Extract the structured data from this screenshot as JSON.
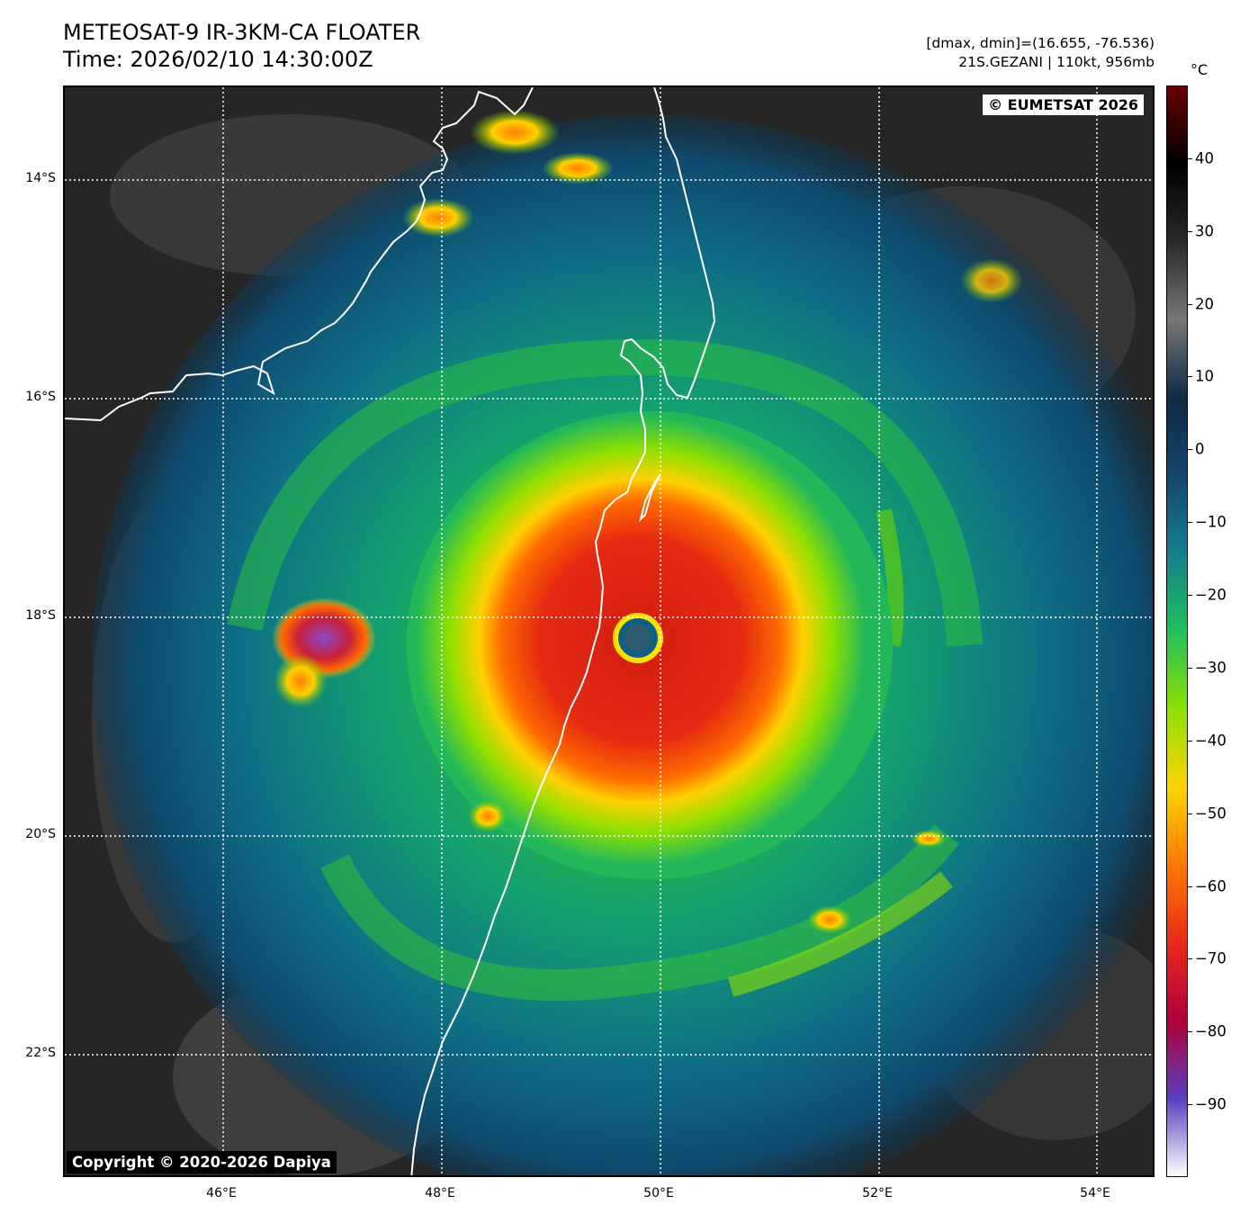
{
  "header": {
    "title_line1": "METEOSAT-9 IR-3KM-CA FLOATER",
    "title_line2": "Time: 2026/02/10 14:30:00Z",
    "info_line1": "[dmax, dmin]=(16.655, -76.536)",
    "info_line2": "21S.GEZANI | 110kt, 956mb"
  },
  "map": {
    "credit_top": "© EUMETSAT 2026",
    "credit_bottom": "Copyright © 2020-2026 Dapiya",
    "lat_labels": [
      "14°S",
      "16°S",
      "18°S",
      "20°S",
      "22°S"
    ],
    "lon_labels": [
      "46°E",
      "48°E",
      "50°E",
      "52°E",
      "54°E"
    ],
    "extent": {
      "lon_min": 44.55,
      "lon_max": 54.55,
      "lat_min": -23.15,
      "lat_max": -13.15
    },
    "storm_center": {
      "lon": 49.8,
      "lat": -18.2
    }
  },
  "colorbar": {
    "unit": "°C",
    "ticks": [
      "40",
      "30",
      "20",
      "10",
      "0",
      "−10",
      "−20",
      "−30",
      "−40",
      "−50",
      "−60",
      "−70",
      "−80",
      "−90"
    ],
    "tick_values": [
      40,
      30,
      20,
      10,
      0,
      -10,
      -20,
      -30,
      -40,
      -50,
      -60,
      -70,
      -80,
      -90
    ],
    "range": [
      -100,
      50
    ],
    "colors": [
      "#ffffff",
      "#5a3fc0",
      "#b0003a",
      "#e82a1a",
      "#ff7a00",
      "#ffd400",
      "#8ce000",
      "#22c05a",
      "#14808e",
      "#13476d",
      "#0d2b45",
      "#777777",
      "#2a2a2a",
      "#000000",
      "#6a0000"
    ]
  }
}
